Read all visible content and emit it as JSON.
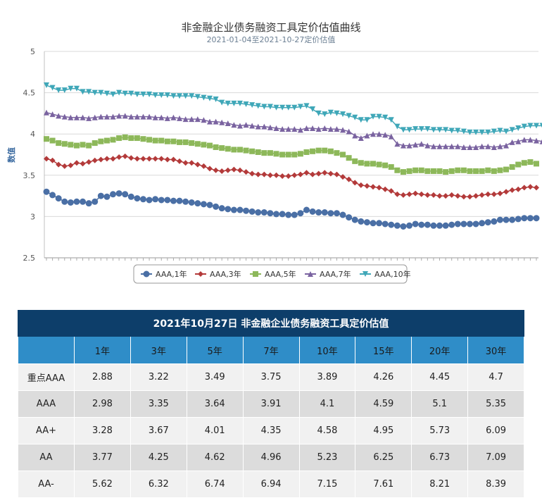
{
  "chart_data": {
    "type": "line",
    "title": "非金融企业债务融资工具定价估值曲线",
    "subtitle": "2021-01-04至2021-10-27定价估值",
    "ylabel": "数值",
    "ylim": [
      2.5,
      5
    ],
    "yticks": [
      "2.5",
      "3",
      "3.5",
      "4",
      "4.5",
      "5"
    ],
    "grid": true,
    "legend_position": "bottom",
    "series": [
      {
        "name": "AAA,1年",
        "color": "#4a6fa5",
        "marker": "circle",
        "values": [
          3.3,
          3.26,
          3.22,
          3.18,
          3.17,
          3.18,
          3.18,
          3.16,
          3.18,
          3.25,
          3.24,
          3.27,
          3.28,
          3.27,
          3.24,
          3.22,
          3.21,
          3.2,
          3.21,
          3.2,
          3.2,
          3.19,
          3.19,
          3.18,
          3.17,
          3.16,
          3.15,
          3.14,
          3.12,
          3.1,
          3.09,
          3.08,
          3.08,
          3.07,
          3.06,
          3.05,
          3.05,
          3.04,
          3.03,
          3.03,
          3.02,
          3.02,
          3.04,
          3.08,
          3.06,
          3.05,
          3.05,
          3.04,
          3.04,
          3.02,
          2.99,
          2.96,
          2.94,
          2.93,
          2.92,
          2.92,
          2.91,
          2.9,
          2.89,
          2.88,
          2.89,
          2.91,
          2.9,
          2.9,
          2.89,
          2.89,
          2.89,
          2.9,
          2.91,
          2.91,
          2.91,
          2.91,
          2.92,
          2.93,
          2.94,
          2.96,
          2.96,
          2.96,
          2.97,
          2.98,
          2.98,
          2.98
        ]
      },
      {
        "name": "AAA,3年",
        "color": "#b33a3a",
        "marker": "diamond",
        "values": [
          3.7,
          3.68,
          3.63,
          3.61,
          3.62,
          3.65,
          3.64,
          3.66,
          3.68,
          3.69,
          3.7,
          3.7,
          3.72,
          3.73,
          3.71,
          3.7,
          3.7,
          3.7,
          3.7,
          3.7,
          3.69,
          3.69,
          3.67,
          3.65,
          3.65,
          3.63,
          3.61,
          3.58,
          3.56,
          3.55,
          3.56,
          3.57,
          3.56,
          3.54,
          3.52,
          3.51,
          3.51,
          3.5,
          3.5,
          3.49,
          3.49,
          3.5,
          3.51,
          3.53,
          3.51,
          3.52,
          3.53,
          3.52,
          3.51,
          3.48,
          3.45,
          3.41,
          3.38,
          3.37,
          3.36,
          3.35,
          3.33,
          3.31,
          3.27,
          3.26,
          3.27,
          3.28,
          3.27,
          3.26,
          3.26,
          3.25,
          3.25,
          3.26,
          3.25,
          3.24,
          3.24,
          3.25,
          3.26,
          3.27,
          3.27,
          3.28,
          3.3,
          3.32,
          3.33,
          3.35,
          3.36,
          3.35
        ]
      },
      {
        "name": "AAA,5年",
        "color": "#8db85a",
        "marker": "square",
        "values": [
          3.94,
          3.92,
          3.89,
          3.88,
          3.87,
          3.86,
          3.87,
          3.86,
          3.89,
          3.91,
          3.92,
          3.93,
          3.95,
          3.96,
          3.95,
          3.95,
          3.94,
          3.93,
          3.92,
          3.92,
          3.91,
          3.91,
          3.9,
          3.9,
          3.89,
          3.88,
          3.87,
          3.86,
          3.84,
          3.83,
          3.82,
          3.81,
          3.81,
          3.8,
          3.79,
          3.78,
          3.77,
          3.77,
          3.76,
          3.75,
          3.75,
          3.75,
          3.76,
          3.78,
          3.79,
          3.8,
          3.8,
          3.79,
          3.77,
          3.75,
          3.71,
          3.67,
          3.65,
          3.64,
          3.64,
          3.63,
          3.62,
          3.6,
          3.56,
          3.54,
          3.55,
          3.56,
          3.56,
          3.55,
          3.55,
          3.55,
          3.54,
          3.55,
          3.56,
          3.56,
          3.55,
          3.55,
          3.55,
          3.56,
          3.55,
          3.56,
          3.57,
          3.6,
          3.63,
          3.65,
          3.66,
          3.64
        ]
      },
      {
        "name": "AAA,7年",
        "color": "#7a63a0",
        "marker": "triangle-up",
        "values": [
          4.26,
          4.24,
          4.22,
          4.21,
          4.2,
          4.2,
          4.2,
          4.19,
          4.2,
          4.21,
          4.21,
          4.21,
          4.22,
          4.22,
          4.21,
          4.21,
          4.21,
          4.21,
          4.2,
          4.2,
          4.19,
          4.2,
          4.19,
          4.18,
          4.18,
          4.18,
          4.17,
          4.15,
          4.15,
          4.14,
          4.13,
          4.11,
          4.1,
          4.11,
          4.1,
          4.09,
          4.09,
          4.08,
          4.07,
          4.06,
          4.06,
          4.06,
          4.05,
          4.07,
          4.07,
          4.06,
          4.07,
          4.06,
          4.06,
          4.05,
          4.03,
          3.98,
          3.95,
          3.98,
          4.0,
          4.0,
          3.99,
          3.97,
          3.88,
          3.86,
          3.86,
          3.87,
          3.88,
          3.86,
          3.85,
          3.85,
          3.85,
          3.85,
          3.85,
          3.84,
          3.84,
          3.84,
          3.85,
          3.85,
          3.84,
          3.85,
          3.86,
          3.9,
          3.91,
          3.93,
          3.93,
          3.92,
          3.91
        ]
      },
      {
        "name": "AAA,10年",
        "color": "#3fa7b8",
        "marker": "triangle-down",
        "values": [
          4.59,
          4.56,
          4.53,
          4.53,
          4.55,
          4.55,
          4.51,
          4.51,
          4.5,
          4.5,
          4.49,
          4.48,
          4.5,
          4.49,
          4.49,
          4.48,
          4.48,
          4.48,
          4.47,
          4.47,
          4.47,
          4.46,
          4.46,
          4.46,
          4.46,
          4.45,
          4.44,
          4.43,
          4.42,
          4.38,
          4.37,
          4.37,
          4.37,
          4.36,
          4.35,
          4.34,
          4.33,
          4.33,
          4.32,
          4.32,
          4.32,
          4.32,
          4.33,
          4.34,
          4.3,
          4.25,
          4.24,
          4.26,
          4.25,
          4.24,
          4.22,
          4.2,
          4.17,
          4.17,
          4.21,
          4.21,
          4.2,
          4.17,
          4.09,
          4.05,
          4.05,
          4.06,
          4.06,
          4.06,
          4.05,
          4.05,
          4.05,
          4.04,
          4.04,
          4.03,
          4.02,
          4.02,
          4.02,
          4.02,
          4.03,
          4.04,
          4.03,
          4.05,
          4.07,
          4.09,
          4.1,
          4.1,
          4.1,
          4.1
        ]
      }
    ]
  },
  "table": {
    "title": "2021年10月27日  非金融企业债务融资工具定价估值",
    "columns": [
      "",
      "1年",
      "3年",
      "5年",
      "7年",
      "10年",
      "15年",
      "20年",
      "30年"
    ],
    "rows": [
      [
        "重点AAA",
        "2.88",
        "3.22",
        "3.49",
        "3.75",
        "3.89",
        "4.26",
        "4.45",
        "4.7"
      ],
      [
        "AAA",
        "2.98",
        "3.35",
        "3.64",
        "3.91",
        "4.1",
        "4.59",
        "5.1",
        "5.35"
      ],
      [
        "AA+",
        "3.28",
        "3.67",
        "4.01",
        "4.35",
        "4.58",
        "4.95",
        "5.73",
        "6.09"
      ],
      [
        "AA",
        "3.77",
        "4.25",
        "4.62",
        "4.96",
        "5.23",
        "6.25",
        "6.73",
        "7.09"
      ],
      [
        "AA-",
        "5.62",
        "6.32",
        "6.74",
        "6.94",
        "7.15",
        "7.61",
        "8.21",
        "8.39"
      ]
    ]
  }
}
